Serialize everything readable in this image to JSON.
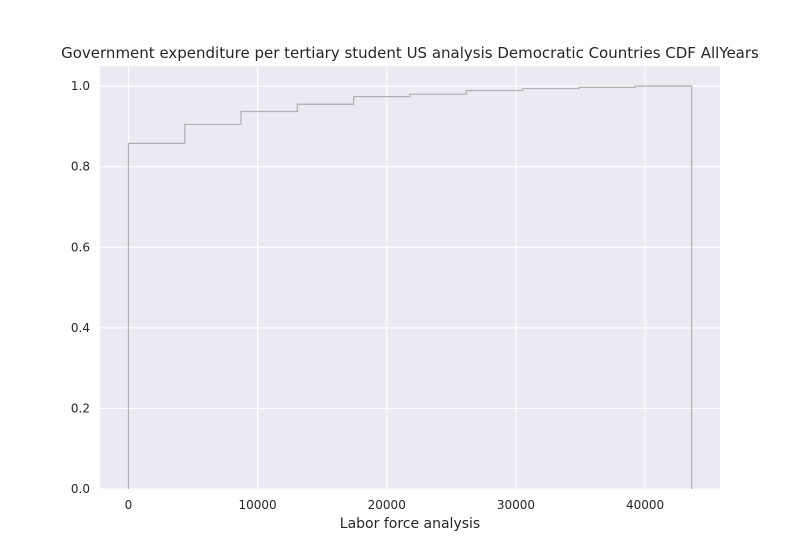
{
  "chart_data": {
    "type": "step",
    "title": "Government expenditure per tertiary student US analysis Democratic Countries CDF AllYears",
    "xlabel": "Labor force analysis",
    "ylabel": "",
    "xlim": [
      -2200,
      45800
    ],
    "ylim": [
      0,
      1.05
    ],
    "x_ticks": [
      0,
      10000,
      20000,
      30000,
      40000
    ],
    "x_tick_labels": [
      "0",
      "10000",
      "20000",
      "30000",
      "40000"
    ],
    "y_ticks": [
      0.0,
      0.2,
      0.4,
      0.6,
      0.8,
      1.0
    ],
    "y_tick_labels": [
      "0.0",
      "0.2",
      "0.4",
      "0.6",
      "0.8",
      "1.0"
    ],
    "grid": true,
    "background_color": "#eaeaf2",
    "grid_color": "#ffffff",
    "line_color": "#b0b0b0",
    "series": [
      {
        "x": [
          0,
          4360,
          8720,
          13080,
          17440,
          21800,
          26160,
          30520,
          34880,
          39240,
          43600
        ],
        "y": [
          0.858,
          0.905,
          0.937,
          0.955,
          0.974,
          0.98,
          0.989,
          0.994,
          0.997,
          1.0,
          0.0
        ]
      }
    ]
  }
}
